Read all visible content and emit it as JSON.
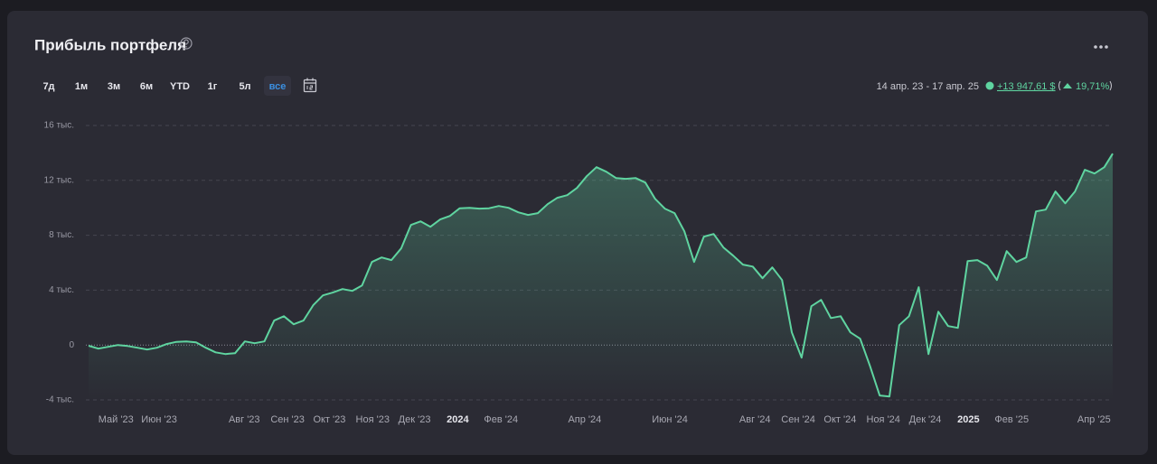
{
  "header": {
    "title": "Прибыль портфеля",
    "periods": [
      {
        "label": "7д"
      },
      {
        "label": "1м"
      },
      {
        "label": "3м"
      },
      {
        "label": "6м"
      },
      {
        "label": "YTD"
      },
      {
        "label": "1г"
      },
      {
        "label": "5л"
      },
      {
        "label": "все",
        "active": true
      }
    ],
    "date_range": "14 апр. 23 - 17 апр. 25",
    "change_abs": "+13 947,61 $",
    "change_pct": "19,71%"
  },
  "chart_data": {
    "type": "area",
    "color": "#5fd4a0",
    "grid": true,
    "xlim": [
      "2023-04-14",
      "2025-04-17"
    ],
    "ylim": [
      -4000,
      16000
    ],
    "yticks": [
      {
        "value": -4000,
        "label": "-4 тыс."
      },
      0,
      {
        "value": 4000,
        "label": "4 тыс."
      },
      {
        "value": 8000,
        "label": "8 тыс."
      },
      {
        "value": 12000,
        "label": "12 тыс."
      },
      {
        "value": 16000,
        "label": "16 тыс."
      }
    ],
    "xticks": [
      {
        "value": "2023-05-01",
        "label": "Май '23"
      },
      {
        "value": "2023-06-01",
        "label": "Июн '23"
      },
      {
        "value": "2023-08-01",
        "label": "Авг '23"
      },
      {
        "value": "2023-09-01",
        "label": "Сен '23"
      },
      {
        "value": "2023-10-01",
        "label": "Окт '23"
      },
      {
        "value": "2023-11-01",
        "label": "Ноя '23"
      },
      {
        "value": "2023-12-01",
        "label": "Дек '23"
      },
      {
        "value": "2024-01-01",
        "label": "2024"
      },
      {
        "value": "2024-02-01",
        "label": "Фев '24"
      },
      {
        "value": "2024-04-01",
        "label": "Апр '24"
      },
      {
        "value": "2024-06-01",
        "label": "Июн '24"
      },
      {
        "value": "2024-08-01",
        "label": "Авг '24"
      },
      {
        "value": "2024-09-01",
        "label": "Сен '24"
      },
      {
        "value": "2024-10-01",
        "label": "Окт '24"
      },
      {
        "value": "2024-11-01",
        "label": "Ноя '24"
      },
      {
        "value": "2024-12-01",
        "label": "Дек '24"
      },
      {
        "value": "2025-01-01",
        "label": "2025"
      },
      {
        "value": "2025-02-01",
        "label": "Фев '25"
      },
      {
        "value": "2025-04-01",
        "label": "Апр '25"
      }
    ],
    "x": [
      "2023-04-14",
      "2023-04-21",
      "2023-04-28",
      "2023-05-05",
      "2023-05-12",
      "2023-05-19",
      "2023-05-26",
      "2023-06-02",
      "2023-06-09",
      "2023-06-16",
      "2023-06-23",
      "2023-06-30",
      "2023-07-07",
      "2023-07-14",
      "2023-07-21",
      "2023-07-28",
      "2023-08-04",
      "2023-08-11",
      "2023-08-18",
      "2023-08-25",
      "2023-09-01",
      "2023-09-08",
      "2023-09-15",
      "2023-09-22",
      "2023-09-29",
      "2023-10-06",
      "2023-10-13",
      "2023-10-20",
      "2023-10-27",
      "2023-11-03",
      "2023-11-10",
      "2023-11-17",
      "2023-11-24",
      "2023-12-01",
      "2023-12-08",
      "2023-12-15",
      "2023-12-22",
      "2023-12-29",
      "2024-01-05",
      "2024-01-12",
      "2024-01-19",
      "2024-01-26",
      "2024-02-02",
      "2024-02-09",
      "2024-02-16",
      "2024-02-23",
      "2024-03-01",
      "2024-03-08",
      "2024-03-15",
      "2024-03-22",
      "2024-03-29",
      "2024-04-05",
      "2024-04-12",
      "2024-04-19",
      "2024-04-26",
      "2024-05-03",
      "2024-05-10",
      "2024-05-17",
      "2024-05-24",
      "2024-05-31",
      "2024-06-07",
      "2024-06-14",
      "2024-06-21",
      "2024-06-28",
      "2024-07-05",
      "2024-07-12",
      "2024-07-19",
      "2024-07-26",
      "2024-08-02",
      "2024-08-09",
      "2024-08-16",
      "2024-08-23",
      "2024-08-30",
      "2024-09-06",
      "2024-09-13",
      "2024-09-20",
      "2024-09-27",
      "2024-10-04",
      "2024-10-11",
      "2024-10-18",
      "2024-10-25",
      "2024-11-01",
      "2024-11-08",
      "2024-11-15",
      "2024-11-22",
      "2024-11-29",
      "2024-12-06",
      "2024-12-13",
      "2024-12-20",
      "2024-12-27",
      "2025-01-03",
      "2025-01-10",
      "2025-01-17",
      "2025-01-24",
      "2025-01-31",
      "2025-02-07",
      "2025-02-14",
      "2025-02-21",
      "2025-02-28",
      "2025-03-07",
      "2025-03-14",
      "2025-03-21",
      "2025-03-28",
      "2025-04-04",
      "2025-04-11",
      "2025-04-17"
    ],
    "values": [
      -50,
      -260,
      -130,
      0,
      -70,
      -200,
      -330,
      -200,
      70,
      230,
      260,
      200,
      -200,
      -530,
      -660,
      -590,
      260,
      130,
      260,
      1780,
      2100,
      1510,
      1780,
      2900,
      3620,
      3820,
      4080,
      3950,
      4340,
      6050,
      6380,
      6190,
      7040,
      8750,
      9010,
      8620,
      9150,
      9410,
      9970,
      10000,
      9940,
      9970,
      10130,
      10000,
      9670,
      9480,
      9610,
      10260,
      10730,
      10920,
      11450,
      12300,
      12960,
      12630,
      12170,
      12110,
      12170,
      11840,
      10660,
      9940,
      9610,
      8290,
      6050,
      7900,
      8090,
      7110,
      6510,
      5860,
      5720,
      4870,
      5660,
      4740,
      920,
      -920,
      2830,
      3290,
      1970,
      2100,
      920,
      460,
      -1510,
      -3680,
      -3750,
      1450,
      2100,
      4210,
      -660,
      2430,
      1380,
      1250,
      6120,
      6190,
      5790,
      4740,
      6840,
      6050,
      6380,
      9740,
      9870,
      11190,
      10330,
      11190,
      12770,
      12500,
      12960,
      13947.61
    ]
  }
}
